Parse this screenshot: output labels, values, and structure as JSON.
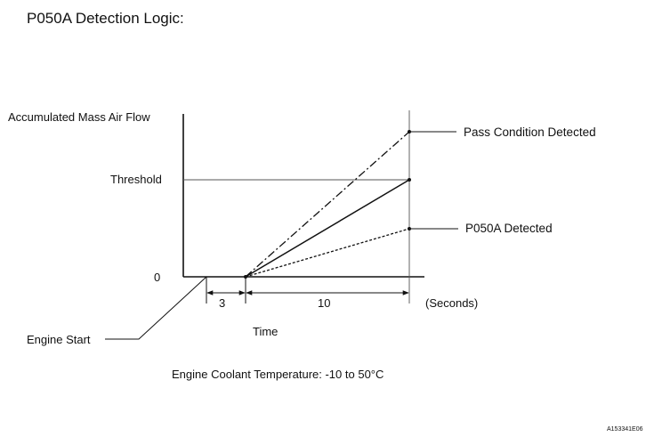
{
  "title": "P050A Detection Logic:",
  "y_axis_label": "Accumulated Mass Air Flow",
  "threshold_label": "Threshold",
  "zero_label": "0",
  "pass_label": "Pass Condition Detected",
  "detected_label": "P050A Detected",
  "interval_1": "3",
  "interval_2": "10",
  "unit_label": "(Seconds)",
  "x_axis_label": "Time",
  "engine_start_label": "Engine Start",
  "condition_text": "Engine Coolant Temperature: -10 to 50°C",
  "figure_code": "A153341E06"
}
